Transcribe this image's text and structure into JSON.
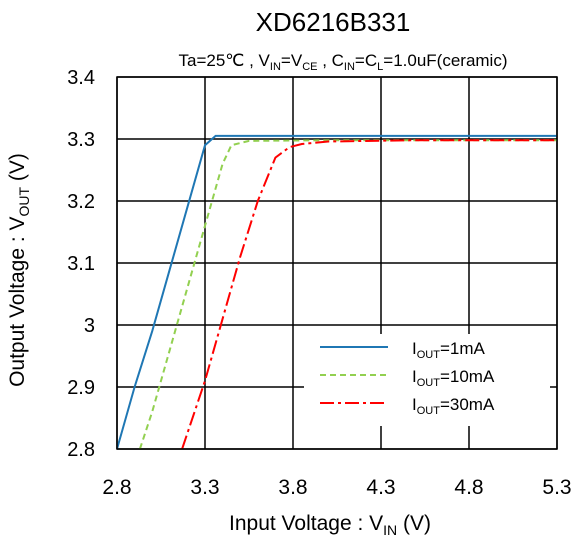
{
  "chart_data": {
    "type": "line",
    "title": "XD6216B331",
    "subtitle": {
      "ta": "Ta=25℃ , V",
      "in1": "IN",
      "eq": "=V",
      "ce": "CE",
      "sep": " , C",
      "in2": "IN",
      "eq2": "=C",
      "l": "L",
      "rest": "=1.0uF(ceramic)"
    },
    "xlabel": {
      "main": "Input Voltage : V",
      "sub": "IN",
      "unit": " (V)"
    },
    "ylabel": {
      "main": "Output Voltage : V",
      "sub": "OUT",
      "unit": " (V)"
    },
    "xlim": [
      2.8,
      5.3
    ],
    "ylim": [
      2.8,
      3.4
    ],
    "xticks": [
      2.8,
      3.3,
      3.8,
      4.3,
      4.8,
      5.3
    ],
    "xtick_labels": [
      "2.8",
      "3.3",
      "3.8",
      "4.3",
      "4.8",
      "5.3"
    ],
    "yticks": [
      2.8,
      2.9,
      3.0,
      3.1,
      3.2,
      3.3,
      3.4
    ],
    "ytick_labels": [
      "2.8",
      "2.9",
      "3",
      "3.1",
      "3.2",
      "3.3",
      "3.4"
    ],
    "grid": true,
    "legend_position": "lower-right",
    "series": [
      {
        "name": "1mA",
        "legend_prefix": "I",
        "legend_sub": "OUT",
        "legend_suffix": "=1mA",
        "color": "#1F77B4",
        "dash": "solid",
        "x": [
          2.8,
          2.9,
          3.0,
          3.1,
          3.2,
          3.3,
          3.36,
          3.5,
          4.0,
          5.3
        ],
        "y": [
          2.8,
          2.9,
          2.99,
          3.09,
          3.19,
          3.29,
          3.305,
          3.305,
          3.305,
          3.305
        ]
      },
      {
        "name": "10mA",
        "legend_prefix": "I",
        "legend_sub": "OUT",
        "legend_suffix": "=10mA",
        "color": "#92D050",
        "dash": "dash",
        "x": [
          2.93,
          3.0,
          3.1,
          3.2,
          3.3,
          3.4,
          3.45,
          3.55,
          4.0,
          5.3
        ],
        "y": [
          2.8,
          2.86,
          2.96,
          3.06,
          3.16,
          3.26,
          3.29,
          3.297,
          3.298,
          3.298
        ]
      },
      {
        "name": "30mA",
        "legend_prefix": "I",
        "legend_sub": "OUT",
        "legend_suffix": "=30mA",
        "color": "#FF0000",
        "dash": "dashdot",
        "x": [
          3.17,
          3.3,
          3.4,
          3.5,
          3.6,
          3.7,
          3.78,
          3.85,
          4.0,
          4.5,
          5.3
        ],
        "y": [
          2.8,
          2.91,
          3.01,
          3.11,
          3.2,
          3.27,
          3.287,
          3.292,
          3.296,
          3.298,
          3.298
        ]
      }
    ]
  }
}
